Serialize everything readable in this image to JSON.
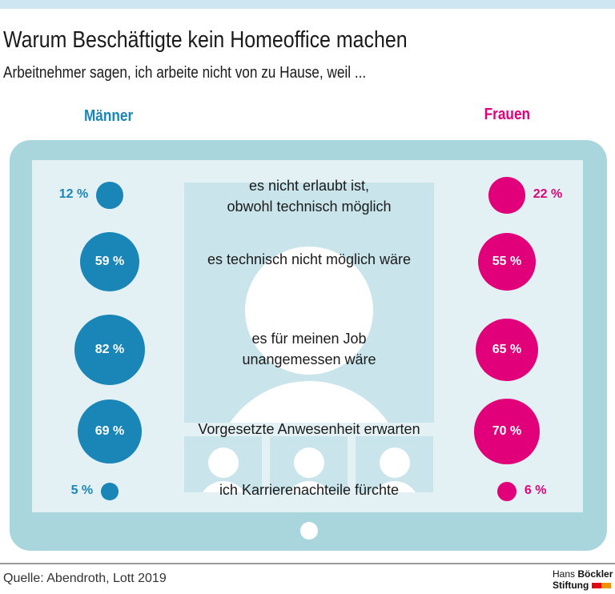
{
  "title": "Warum Beschäftigte kein Homeoffice machen",
  "subtitle": "Arbeitnehmer sagen, ich arbeite nicht von zu Hause, weil ...",
  "source": "Quelle: Abendroth, Lott 2019",
  "logo": {
    "line1a": "Hans",
    "line1b": "Böckler",
    "line2": "Stiftung"
  },
  "colors": {
    "men": "#1a86b8",
    "women": "#e2007a",
    "tablet": "#a9d6dd",
    "screen": "#e3f1f4"
  },
  "chart_data": {
    "type": "bubble",
    "series": [
      {
        "name": "Männer",
        "values": [
          12,
          59,
          82,
          69,
          5
        ],
        "labels": [
          "12 %",
          "59 %",
          "82 %",
          "69 %",
          "5 %"
        ]
      },
      {
        "name": "Frauen",
        "values": [
          22,
          55,
          65,
          70,
          6
        ],
        "labels": [
          "22 %",
          "55 %",
          "65 %",
          "70 %",
          "6 %"
        ]
      }
    ],
    "categories": [
      "es nicht erlaubt ist, obwohl technisch möglich",
      "es technisch nicht möglich wäre",
      "es für meinen Job unangemessen wäre",
      "Vorgesetzte Anwesenheit erwarten",
      "ich Karrierenachteile fürchte"
    ],
    "category_lines": [
      [
        "es nicht erlaubt ist,",
        "obwohl technisch möglich"
      ],
      [
        "es technisch nicht möglich wäre"
      ],
      [
        "es für meinen Job",
        "unangemessen wäre"
      ],
      [
        "Vorgesetzte Anwesenheit erwarten"
      ],
      [
        "ich Karrierenachteile fürchte"
      ]
    ],
    "unit": "%"
  }
}
